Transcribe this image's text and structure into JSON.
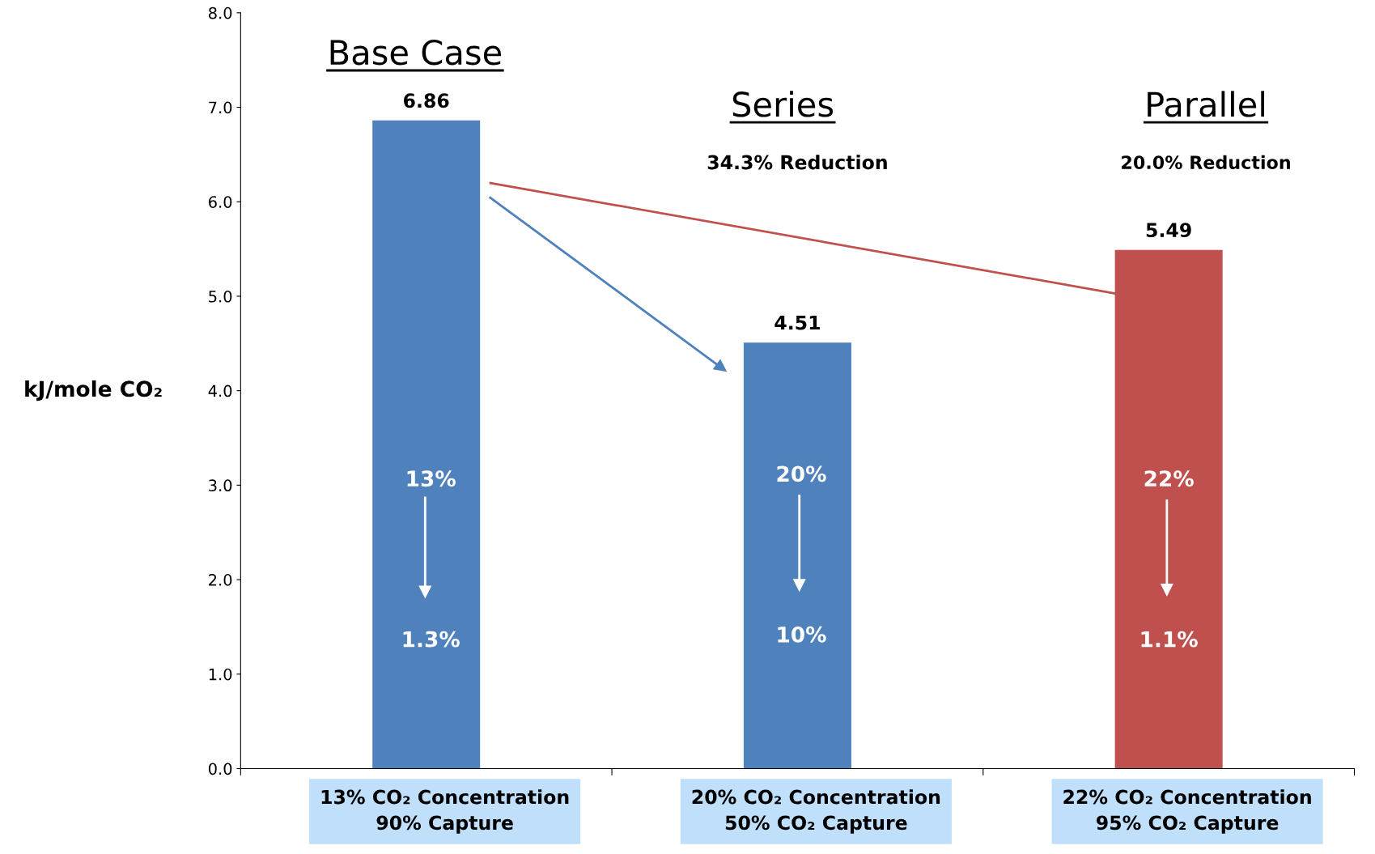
{
  "chart_data": {
    "type": "bar",
    "categories": [
      "13% CO₂ Concentration\n90% Capture",
      "20% CO₂ Concentration\n50% CO₂ Capture",
      "22% CO₂ Concentration\n95% CO₂ Capture"
    ],
    "values": [
      6.86,
      4.51,
      5.49
    ],
    "colors": [
      "#4f81bd",
      "#4f81bd",
      "#c0504d"
    ],
    "ylabel": "kJ/mole CO₂",
    "ylim": [
      0,
      8
    ],
    "yticks": [
      {
        "value": 0,
        "label": "0.0"
      },
      {
        "value": 1,
        "label": "1.0"
      },
      {
        "value": 2,
        "label": "2.0"
      },
      {
        "value": 3,
        "label": "3.0"
      },
      {
        "value": 4,
        "label": "4.0"
      },
      {
        "value": 5,
        "label": "5.0"
      },
      {
        "value": 6,
        "label": "6.0"
      },
      {
        "value": 7,
        "label": "7.0"
      },
      {
        "value": 8,
        "label": "8.0"
      }
    ],
    "data_labels": true,
    "grid": false,
    "annotations": [
      "Base Case",
      "Series",
      "34.3% Reduction",
      "Parallel",
      "20.0% Reduction",
      "13%",
      "1.3%",
      "20%",
      "10%",
      "22%",
      "1.1%"
    ]
  }
}
